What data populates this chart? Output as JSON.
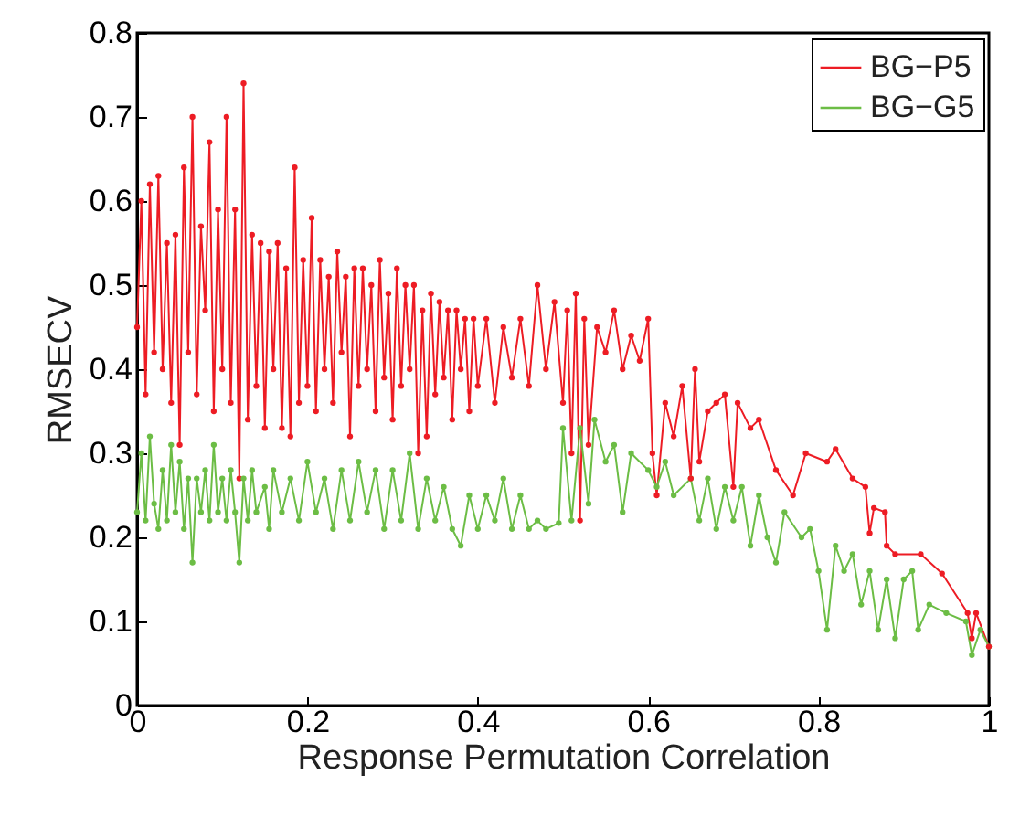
{
  "chart_data": {
    "type": "line",
    "xlabel": "Response Permutation Correlation",
    "ylabel": "RMSECV",
    "xlim": [
      0,
      1
    ],
    "ylim": [
      0,
      0.8
    ],
    "xticks": [
      0,
      0.2,
      0.4,
      0.6,
      0.8,
      1
    ],
    "yticks": [
      0,
      0.1,
      0.2,
      0.3,
      0.4,
      0.5,
      0.6,
      0.7,
      0.8
    ],
    "grid": false,
    "legend": "top right",
    "marker": "circle",
    "line_style": "solid",
    "series": [
      {
        "name": "BG−P5",
        "color": "#ed1c24",
        "x": [
          0,
          0.005,
          0.01,
          0.015,
          0.02,
          0.025,
          0.03,
          0.035,
          0.04,
          0.045,
          0.05,
          0.055,
          0.06,
          0.065,
          0.07,
          0.075,
          0.08,
          0.085,
          0.09,
          0.095,
          0.1,
          0.105,
          0.11,
          0.115,
          0.12,
          0.125,
          0.13,
          0.135,
          0.14,
          0.145,
          0.15,
          0.155,
          0.16,
          0.165,
          0.17,
          0.175,
          0.18,
          0.185,
          0.19,
          0.195,
          0.2,
          0.205,
          0.21,
          0.215,
          0.22,
          0.225,
          0.23,
          0.235,
          0.24,
          0.245,
          0.25,
          0.255,
          0.26,
          0.265,
          0.27,
          0.275,
          0.28,
          0.285,
          0.29,
          0.295,
          0.3,
          0.305,
          0.31,
          0.315,
          0.32,
          0.325,
          0.33,
          0.335,
          0.34,
          0.345,
          0.35,
          0.355,
          0.36,
          0.365,
          0.37,
          0.375,
          0.38,
          0.385,
          0.39,
          0.395,
          0.4,
          0.41,
          0.42,
          0.43,
          0.44,
          0.45,
          0.46,
          0.47,
          0.48,
          0.49,
          0.5,
          0.505,
          0.51,
          0.515,
          0.52,
          0.525,
          0.53,
          0.54,
          0.55,
          0.56,
          0.57,
          0.58,
          0.59,
          0.6,
          0.605,
          0.61,
          0.62,
          0.63,
          0.64,
          0.65,
          0.655,
          0.66,
          0.67,
          0.68,
          0.69,
          0.7,
          0.705,
          0.72,
          0.73,
          0.75,
          0.77,
          0.785,
          0.81,
          0.82,
          0.84,
          0.855,
          0.86,
          0.865,
          0.878,
          0.88,
          0.89,
          0.92,
          0.945,
          0.975,
          0.98,
          0.985,
          1
        ],
        "values": [
          0.45,
          0.6,
          0.37,
          0.62,
          0.42,
          0.63,
          0.4,
          0.55,
          0.36,
          0.56,
          0.31,
          0.64,
          0.42,
          0.7,
          0.37,
          0.57,
          0.47,
          0.67,
          0.35,
          0.59,
          0.4,
          0.7,
          0.36,
          0.59,
          0.27,
          0.74,
          0.34,
          0.56,
          0.38,
          0.55,
          0.33,
          0.54,
          0.4,
          0.55,
          0.33,
          0.52,
          0.32,
          0.64,
          0.36,
          0.53,
          0.38,
          0.58,
          0.35,
          0.53,
          0.4,
          0.51,
          0.36,
          0.54,
          0.42,
          0.51,
          0.32,
          0.52,
          0.38,
          0.52,
          0.4,
          0.5,
          0.35,
          0.53,
          0.39,
          0.49,
          0.34,
          0.52,
          0.38,
          0.5,
          0.4,
          0.5,
          0.3,
          0.47,
          0.32,
          0.49,
          0.37,
          0.48,
          0.39,
          0.47,
          0.34,
          0.47,
          0.4,
          0.46,
          0.35,
          0.46,
          0.38,
          0.46,
          0.36,
          0.45,
          0.39,
          0.46,
          0.38,
          0.5,
          0.4,
          0.48,
          0.36,
          0.47,
          0.3,
          0.49,
          0.22,
          0.46,
          0.31,
          0.45,
          0.42,
          0.47,
          0.4,
          0.44,
          0.41,
          0.46,
          0.3,
          0.25,
          0.36,
          0.32,
          0.38,
          0.27,
          0.4,
          0.29,
          0.35,
          0.36,
          0.37,
          0.26,
          0.36,
          0.33,
          0.34,
          0.28,
          0.25,
          0.3,
          0.29,
          0.305,
          0.27,
          0.26,
          0.205,
          0.235,
          0.23,
          0.19,
          0.18,
          0.18,
          0.157,
          0.11,
          0.08,
          0.11,
          0.07
        ]
      },
      {
        "name": "BG−G5",
        "color": "#6cbd45",
        "x": [
          0,
          0.005,
          0.01,
          0.015,
          0.02,
          0.025,
          0.03,
          0.035,
          0.04,
          0.045,
          0.05,
          0.055,
          0.06,
          0.065,
          0.07,
          0.075,
          0.08,
          0.085,
          0.09,
          0.095,
          0.1,
          0.105,
          0.11,
          0.115,
          0.12,
          0.125,
          0.13,
          0.135,
          0.14,
          0.15,
          0.155,
          0.16,
          0.17,
          0.18,
          0.19,
          0.2,
          0.21,
          0.22,
          0.23,
          0.24,
          0.25,
          0.26,
          0.27,
          0.28,
          0.29,
          0.3,
          0.31,
          0.32,
          0.33,
          0.34,
          0.35,
          0.36,
          0.37,
          0.38,
          0.39,
          0.4,
          0.41,
          0.42,
          0.43,
          0.44,
          0.45,
          0.46,
          0.47,
          0.48,
          0.495,
          0.5,
          0.51,
          0.52,
          0.53,
          0.537,
          0.55,
          0.56,
          0.57,
          0.58,
          0.6,
          0.61,
          0.62,
          0.63,
          0.65,
          0.66,
          0.67,
          0.68,
          0.69,
          0.7,
          0.71,
          0.72,
          0.73,
          0.74,
          0.75,
          0.76,
          0.78,
          0.79,
          0.8,
          0.81,
          0.82,
          0.83,
          0.84,
          0.85,
          0.86,
          0.87,
          0.88,
          0.89,
          0.9,
          0.91,
          0.917,
          0.93,
          0.95,
          0.973,
          0.98,
          0.99,
          1
        ],
        "values": [
          0.23,
          0.3,
          0.22,
          0.32,
          0.24,
          0.21,
          0.28,
          0.22,
          0.31,
          0.23,
          0.29,
          0.21,
          0.27,
          0.17,
          0.27,
          0.23,
          0.28,
          0.22,
          0.31,
          0.23,
          0.27,
          0.22,
          0.28,
          0.23,
          0.17,
          0.27,
          0.22,
          0.28,
          0.23,
          0.26,
          0.21,
          0.28,
          0.23,
          0.27,
          0.22,
          0.29,
          0.23,
          0.27,
          0.21,
          0.28,
          0.22,
          0.29,
          0.23,
          0.28,
          0.21,
          0.28,
          0.22,
          0.3,
          0.21,
          0.27,
          0.22,
          0.26,
          0.21,
          0.19,
          0.25,
          0.21,
          0.25,
          0.22,
          0.27,
          0.21,
          0.25,
          0.21,
          0.22,
          0.21,
          0.217,
          0.33,
          0.22,
          0.33,
          0.24,
          0.34,
          0.29,
          0.31,
          0.23,
          0.3,
          0.28,
          0.26,
          0.29,
          0.25,
          0.27,
          0.22,
          0.27,
          0.21,
          0.26,
          0.22,
          0.26,
          0.19,
          0.25,
          0.2,
          0.17,
          0.23,
          0.2,
          0.21,
          0.16,
          0.09,
          0.19,
          0.16,
          0.18,
          0.12,
          0.16,
          0.09,
          0.15,
          0.08,
          0.15,
          0.16,
          0.09,
          0.12,
          0.11,
          0.1,
          0.06,
          0.09,
          0.07
        ]
      }
    ]
  }
}
